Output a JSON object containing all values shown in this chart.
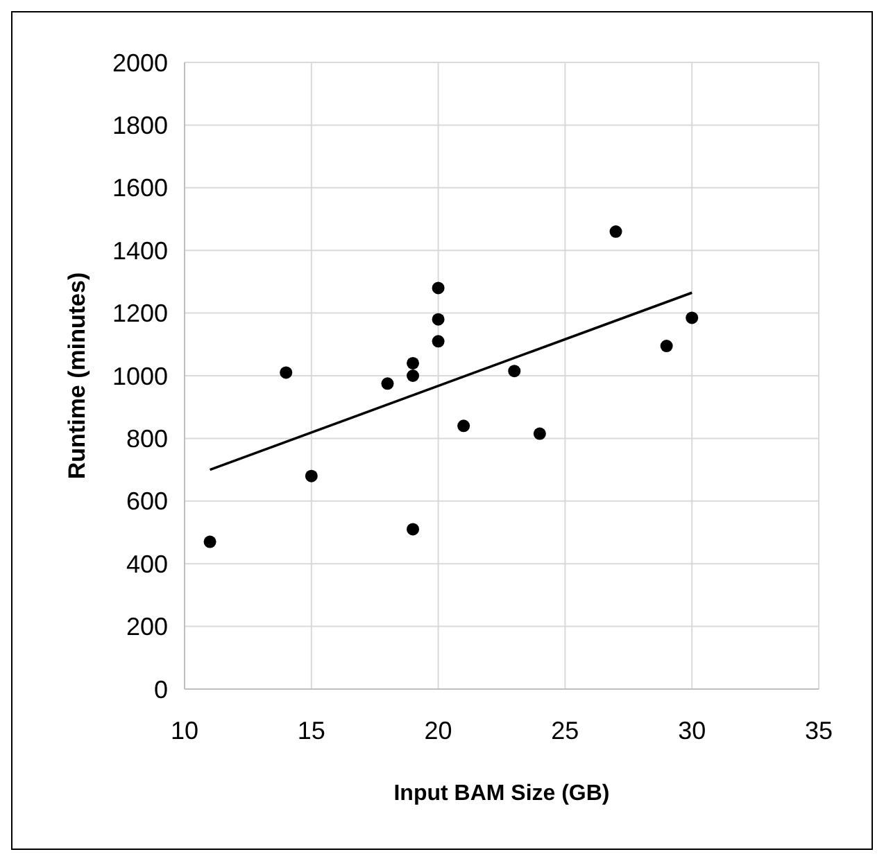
{
  "chart_data": {
    "type": "scatter",
    "xlabel": "Input BAM Size (GB)",
    "ylabel": "Runtime (minutes)",
    "xlim": [
      10,
      35
    ],
    "xticks": [
      10,
      15,
      20,
      25,
      30,
      35
    ],
    "ylim": [
      0,
      2000
    ],
    "yticks": [
      0,
      200,
      400,
      600,
      800,
      1000,
      1200,
      1400,
      1600,
      1800,
      2000
    ],
    "grid": true,
    "marker": "circle",
    "series": [
      {
        "color": "#000000",
        "x": [
          11,
          14,
          15,
          18,
          19,
          19,
          19,
          20,
          20,
          20,
          21,
          23,
          24,
          27,
          29,
          30
        ],
        "values": [
          470,
          1010,
          680,
          975,
          1040,
          1000,
          510,
          1280,
          1180,
          1110,
          840,
          1015,
          815,
          1460,
          1095,
          1185
        ]
      },
      {
        "type": "line",
        "color": "#000000",
        "x": [
          11,
          30
        ],
        "values": [
          700,
          1265
        ],
        "marker": "none"
      }
    ]
  }
}
